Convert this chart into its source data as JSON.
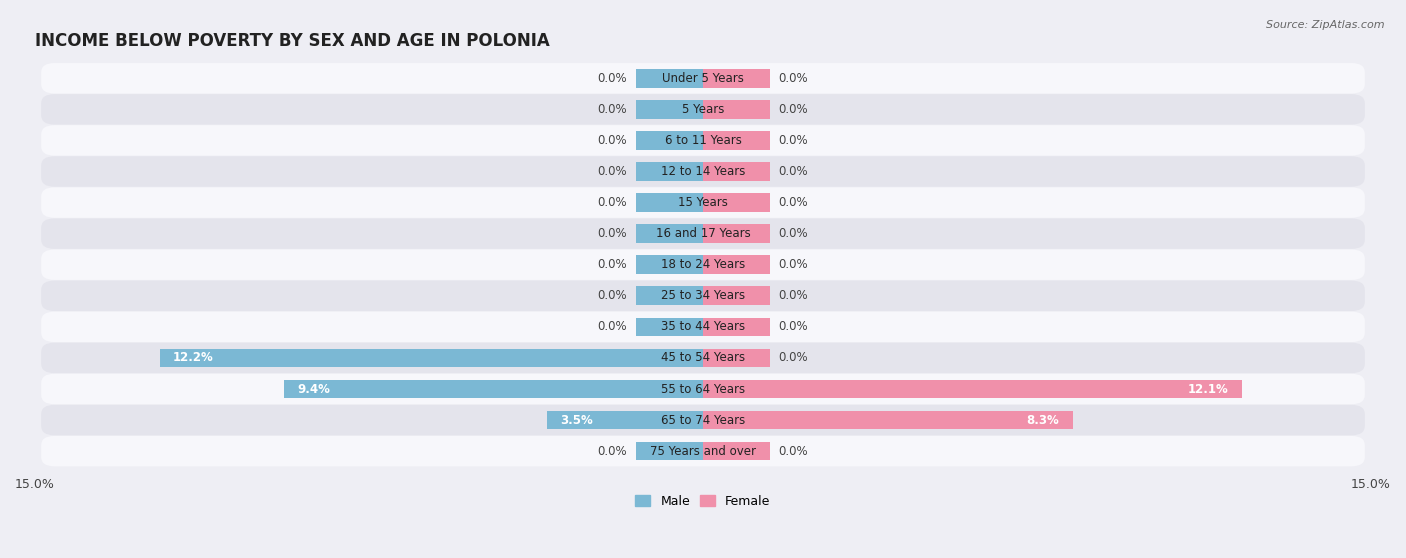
{
  "title": "INCOME BELOW POVERTY BY SEX AND AGE IN POLONIA",
  "source": "Source: ZipAtlas.com",
  "categories": [
    "Under 5 Years",
    "5 Years",
    "6 to 11 Years",
    "12 to 14 Years",
    "15 Years",
    "16 and 17 Years",
    "18 to 24 Years",
    "25 to 34 Years",
    "35 to 44 Years",
    "45 to 54 Years",
    "55 to 64 Years",
    "65 to 74 Years",
    "75 Years and over"
  ],
  "male_values": [
    0.0,
    0.0,
    0.0,
    0.0,
    0.0,
    0.0,
    0.0,
    0.0,
    0.0,
    12.2,
    9.4,
    3.5,
    0.0
  ],
  "female_values": [
    0.0,
    0.0,
    0.0,
    0.0,
    0.0,
    0.0,
    0.0,
    0.0,
    0.0,
    0.0,
    12.1,
    8.3,
    0.0
  ],
  "male_color": "#7bb8d4",
  "female_color": "#f090aa",
  "xlim": 15.0,
  "bar_height": 0.6,
  "background_color": "#eeeef4",
  "row_bg_light": "#f7f7fb",
  "row_bg_dark": "#e4e4ec",
  "title_fontsize": 12,
  "label_fontsize": 8.5,
  "tick_fontsize": 9,
  "legend_fontsize": 9,
  "zero_stub": 1.5
}
